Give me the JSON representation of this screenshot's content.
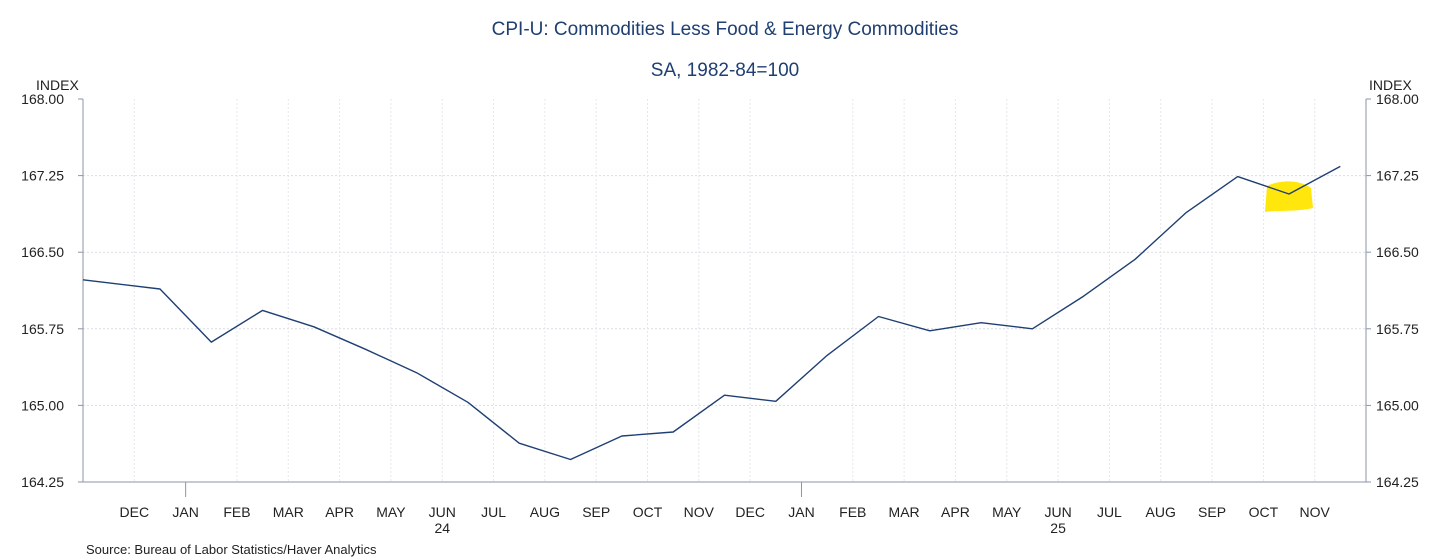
{
  "chart_data": {
    "type": "line",
    "title": "CPI-U: Commodities Less Food & Energy Commodities",
    "subtitle": "SA, 1982-84=100",
    "ylabel_left": "INDEX",
    "ylabel_right": "INDEX",
    "ylim": [
      164.25,
      168.0
    ],
    "yticks": [
      "168.00",
      "167.25",
      "166.50",
      "165.75",
      "165.00",
      "164.25"
    ],
    "grid": true,
    "x": [
      "2023-11",
      "2023-12",
      "2024-01",
      "2024-02",
      "2024-03",
      "2024-04",
      "2024-05",
      "2024-06",
      "2024-07",
      "2024-08",
      "2024-09",
      "2024-10",
      "2024-11",
      "2024-12",
      "2025-01",
      "2025-02",
      "2025-03",
      "2025-04",
      "2025-05",
      "2025-06",
      "2025-07",
      "2025-08",
      "2025-09",
      "2025-10",
      "2025-11"
    ],
    "month_labels": [
      "DEC",
      "JAN",
      "FEB",
      "MAR",
      "APR",
      "MAY",
      "JUN",
      "JUL",
      "AUG",
      "SEP",
      "OCT",
      "NOV",
      "DEC",
      "JAN",
      "FEB",
      "MAR",
      "APR",
      "MAY",
      "JUN",
      "JUL",
      "AUG",
      "SEP",
      "OCT",
      "NOV"
    ],
    "year_labels": [
      {
        "label": "24",
        "month_index": 6
      },
      {
        "label": "25",
        "month_index": 18
      }
    ],
    "series": [
      {
        "name": "CPI-U: Commodities Less Food & Energy Commodities",
        "color": "#1f3f73",
        "values": [
          166.23,
          166.14,
          165.62,
          165.93,
          165.77,
          165.55,
          165.32,
          165.03,
          164.63,
          164.47,
          164.7,
          164.74,
          165.1,
          165.04,
          165.49,
          165.87,
          165.73,
          165.81,
          165.75,
          166.07,
          166.43,
          166.89,
          167.24,
          167.07,
          167.34
        ]
      }
    ],
    "highlight": {
      "month_label": "OCT",
      "year": "25",
      "color": "#ffe600"
    },
    "source": "Source:  Bureau of Labor Statistics/Haver Analytics"
  }
}
